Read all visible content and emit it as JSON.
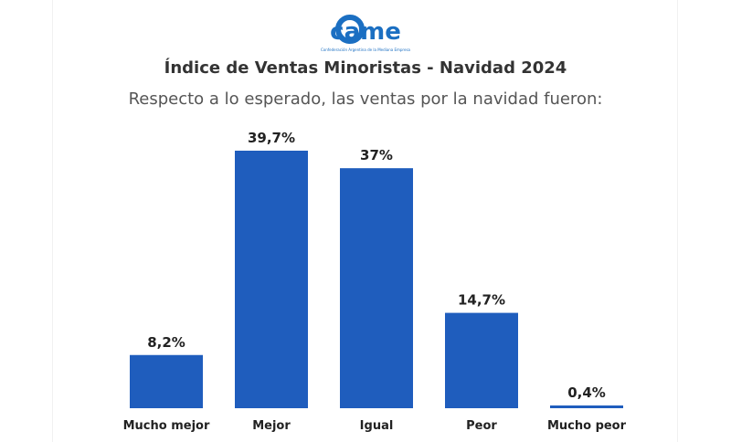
{
  "header": {
    "logo_text": "came",
    "logo_subtext": "Confederación Argentina de la Mediana Empresa",
    "title": "Índice de Ventas Minoristas - Navidad 2024",
    "subtitle": "Respecto a lo esperado, las ventas por la navidad fueron:"
  },
  "colors": {
    "bar": "#1f5dbd",
    "logo_blue": "#1b6fc2",
    "text": "#222222"
  },
  "chart_data": {
    "type": "bar",
    "title": "Índice de Ventas Minoristas - Navidad 2024",
    "subtitle": "Respecto a lo esperado, las ventas por la navidad fueron:",
    "categories": [
      "Mucho mejor",
      "Mejor",
      "Igual",
      "Peor",
      "Mucho peor"
    ],
    "values": [
      8.2,
      39.7,
      37,
      14.7,
      0.4
    ],
    "value_labels": [
      "8,2%",
      "39,7%",
      "37%",
      "14,7%",
      "0,4%"
    ],
    "xlabel": "",
    "ylabel": "",
    "ylim": [
      0,
      40
    ],
    "grid": false,
    "legend": "none"
  }
}
